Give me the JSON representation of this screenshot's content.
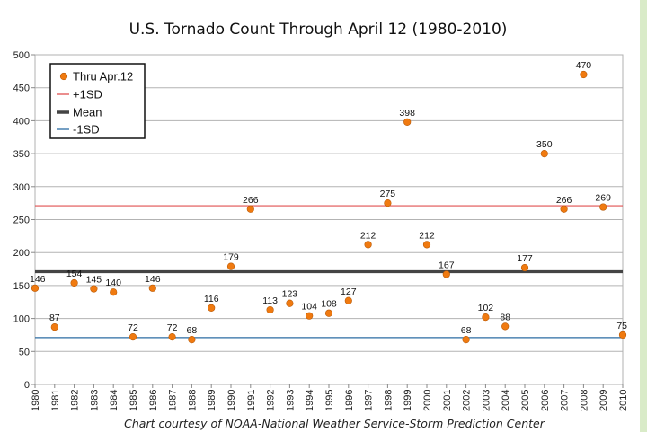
{
  "chart_data": {
    "type": "scatter",
    "title": "U.S. Tornado Count Through April 12 (1980-2010)",
    "credit": "Chart courtesy of NOAA-National Weather Service-Storm Prediction Center",
    "x": [
      1980,
      1981,
      1982,
      1983,
      1984,
      1985,
      1986,
      1987,
      1988,
      1989,
      1990,
      1991,
      1992,
      1993,
      1994,
      1995,
      1996,
      1997,
      1998,
      1999,
      2000,
      2001,
      2002,
      2003,
      2004,
      2005,
      2006,
      2007,
      2008,
      2009,
      2010
    ],
    "series": [
      {
        "name": "Thru Apr.12",
        "values": [
          146,
          87,
          154,
          145,
          140,
          72,
          146,
          72,
          68,
          116,
          179,
          266,
          113,
          123,
          104,
          108,
          127,
          212,
          275,
          398,
          212,
          167,
          68,
          102,
          88,
          177,
          350,
          266,
          470,
          269,
          75
        ],
        "color": "#f07a10"
      }
    ],
    "reference_lines": [
      {
        "name": "+1SD",
        "value": 271,
        "color": "#e05050"
      },
      {
        "name": "Mean",
        "value": 171,
        "color": "#444444"
      },
      {
        "name": "-1SD",
        "value": 71,
        "color": "#2b6ca3"
      }
    ],
    "ylim": [
      0,
      500
    ],
    "yticks": [
      0,
      50,
      100,
      150,
      200,
      250,
      300,
      350,
      400,
      450,
      500
    ],
    "grid": "horizontal",
    "legend": "top-left"
  }
}
